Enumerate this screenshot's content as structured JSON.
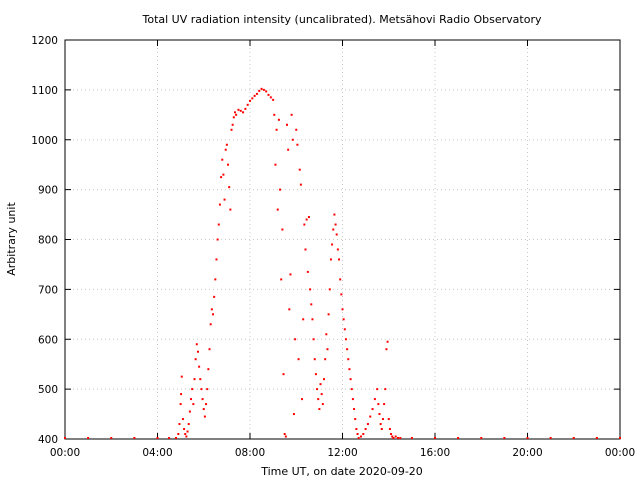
{
  "chart_data": {
    "type": "scatter",
    "title": "Total UV radiation intensity (uncalibrated). Metsähovi Radio Observatory",
    "xlabel": "Time UT, on date 2020-09-20",
    "ylabel": "Arbitrary unit",
    "xlim": [
      0,
      24
    ],
    "ylim": [
      400,
      1200
    ],
    "x_ticks": [
      0,
      4,
      8,
      12,
      16,
      20,
      24
    ],
    "x_tick_labels": [
      "00:00",
      "04:00",
      "08:00",
      "12:00",
      "16:00",
      "20:00",
      "00:00"
    ],
    "y_ticks": [
      400,
      500,
      600,
      700,
      800,
      900,
      1000,
      1100,
      1200
    ],
    "y_tick_labels": [
      "400",
      "500",
      "600",
      "700",
      "800",
      "900",
      "1000",
      "1100",
      "1200"
    ],
    "grid": true,
    "legend": "none",
    "marker_color": "#ff0000",
    "series": [
      {
        "x_unit": "hours UT",
        "points": [
          [
            0.0,
            400
          ],
          [
            1.0,
            400
          ],
          [
            2.0,
            400
          ],
          [
            3.0,
            400
          ],
          [
            4.0,
            400
          ],
          [
            4.5,
            400
          ],
          [
            4.8,
            400
          ],
          [
            4.9,
            410
          ],
          [
            4.95,
            430
          ],
          [
            5.0,
            470
          ],
          [
            5.02,
            490
          ],
          [
            5.05,
            525
          ],
          [
            5.1,
            440
          ],
          [
            5.15,
            420
          ],
          [
            5.2,
            410
          ],
          [
            5.25,
            405
          ],
          [
            5.3,
            415
          ],
          [
            5.35,
            430
          ],
          [
            5.4,
            455
          ],
          [
            5.45,
            480
          ],
          [
            5.5,
            500
          ],
          [
            5.55,
            470
          ],
          [
            5.6,
            520
          ],
          [
            5.65,
            560
          ],
          [
            5.7,
            590
          ],
          [
            5.75,
            575
          ],
          [
            5.8,
            545
          ],
          [
            5.85,
            520
          ],
          [
            5.9,
            500
          ],
          [
            5.95,
            480
          ],
          [
            6.0,
            460
          ],
          [
            6.05,
            445
          ],
          [
            6.1,
            470
          ],
          [
            6.15,
            500
          ],
          [
            6.2,
            540
          ],
          [
            6.25,
            580
          ],
          [
            6.3,
            630
          ],
          [
            6.35,
            660
          ],
          [
            6.4,
            650
          ],
          [
            6.45,
            685
          ],
          [
            6.5,
            720
          ],
          [
            6.55,
            760
          ],
          [
            6.6,
            800
          ],
          [
            6.65,
            830
          ],
          [
            6.7,
            870
          ],
          [
            6.75,
            925
          ],
          [
            6.8,
            960
          ],
          [
            6.85,
            930
          ],
          [
            6.9,
            880
          ],
          [
            6.95,
            980
          ],
          [
            7.0,
            990
          ],
          [
            7.05,
            950
          ],
          [
            7.1,
            905
          ],
          [
            7.15,
            860
          ],
          [
            7.2,
            1020
          ],
          [
            7.25,
            1030
          ],
          [
            7.3,
            1045
          ],
          [
            7.35,
            1055
          ],
          [
            7.4,
            1050
          ],
          [
            7.5,
            1060
          ],
          [
            7.6,
            1058
          ],
          [
            7.7,
            1055
          ],
          [
            7.8,
            1062
          ],
          [
            7.9,
            1070
          ],
          [
            8.0,
            1078
          ],
          [
            8.1,
            1083
          ],
          [
            8.2,
            1088
          ],
          [
            8.3,
            1092
          ],
          [
            8.4,
            1098
          ],
          [
            8.5,
            1102
          ],
          [
            8.6,
            1100
          ],
          [
            8.7,
            1097
          ],
          [
            8.8,
            1090
          ],
          [
            8.9,
            1085
          ],
          [
            9.0,
            1080
          ],
          [
            9.05,
            1050
          ],
          [
            9.1,
            950
          ],
          [
            9.15,
            1020
          ],
          [
            9.2,
            860
          ],
          [
            9.25,
            1040
          ],
          [
            9.3,
            900
          ],
          [
            9.35,
            720
          ],
          [
            9.4,
            820
          ],
          [
            9.45,
            530
          ],
          [
            9.5,
            410
          ],
          [
            9.55,
            405
          ],
          [
            9.6,
            1030
          ],
          [
            9.65,
            980
          ],
          [
            9.7,
            660
          ],
          [
            9.75,
            730
          ],
          [
            9.8,
            1050
          ],
          [
            9.85,
            1000
          ],
          [
            9.9,
            450
          ],
          [
            9.95,
            600
          ],
          [
            10.0,
            1020
          ],
          [
            10.05,
            990
          ],
          [
            10.1,
            560
          ],
          [
            10.15,
            940
          ],
          [
            10.2,
            910
          ],
          [
            10.25,
            480
          ],
          [
            10.3,
            640
          ],
          [
            10.35,
            830
          ],
          [
            10.4,
            780
          ],
          [
            10.45,
            840
          ],
          [
            10.5,
            735
          ],
          [
            10.55,
            845
          ],
          [
            10.6,
            700
          ],
          [
            10.65,
            670
          ],
          [
            10.7,
            640
          ],
          [
            10.75,
            600
          ],
          [
            10.8,
            560
          ],
          [
            10.85,
            530
          ],
          [
            10.9,
            500
          ],
          [
            10.95,
            480
          ],
          [
            11.0,
            460
          ],
          [
            11.05,
            510
          ],
          [
            11.1,
            490
          ],
          [
            11.15,
            470
          ],
          [
            11.2,
            520
          ],
          [
            11.25,
            560
          ],
          [
            11.3,
            610
          ],
          [
            11.35,
            580
          ],
          [
            11.4,
            650
          ],
          [
            11.45,
            700
          ],
          [
            11.5,
            760
          ],
          [
            11.55,
            790
          ],
          [
            11.6,
            820
          ],
          [
            11.65,
            850
          ],
          [
            11.7,
            830
          ],
          [
            11.75,
            810
          ],
          [
            11.8,
            780
          ],
          [
            11.85,
            760
          ],
          [
            11.9,
            720
          ],
          [
            11.95,
            690
          ],
          [
            12.0,
            660
          ],
          [
            12.05,
            640
          ],
          [
            12.1,
            620
          ],
          [
            12.15,
            600
          ],
          [
            12.2,
            580
          ],
          [
            12.25,
            560
          ],
          [
            12.3,
            540
          ],
          [
            12.35,
            520
          ],
          [
            12.4,
            500
          ],
          [
            12.45,
            480
          ],
          [
            12.5,
            460
          ],
          [
            12.55,
            440
          ],
          [
            12.6,
            420
          ],
          [
            12.65,
            410
          ],
          [
            12.7,
            400
          ],
          [
            12.8,
            405
          ],
          [
            12.9,
            410
          ],
          [
            13.0,
            420
          ],
          [
            13.1,
            430
          ],
          [
            13.2,
            445
          ],
          [
            13.3,
            460
          ],
          [
            13.4,
            480
          ],
          [
            13.5,
            500
          ],
          [
            13.55,
            470
          ],
          [
            13.6,
            450
          ],
          [
            13.65,
            430
          ],
          [
            13.7,
            420
          ],
          [
            13.75,
            440
          ],
          [
            13.8,
            470
          ],
          [
            13.85,
            500
          ],
          [
            13.9,
            580
          ],
          [
            13.95,
            595
          ],
          [
            14.0,
            440
          ],
          [
            14.05,
            420
          ],
          [
            14.1,
            410
          ],
          [
            14.15,
            405
          ],
          [
            14.2,
            400
          ],
          [
            14.3,
            405
          ],
          [
            14.4,
            400
          ],
          [
            14.5,
            400
          ],
          [
            15.0,
            400
          ],
          [
            16.0,
            400
          ],
          [
            17.0,
            400
          ],
          [
            18.0,
            400
          ],
          [
            19.0,
            400
          ],
          [
            20.0,
            400
          ],
          [
            21.0,
            400
          ],
          [
            22.0,
            400
          ],
          [
            23.0,
            400
          ],
          [
            24.0,
            400
          ]
        ]
      }
    ]
  }
}
